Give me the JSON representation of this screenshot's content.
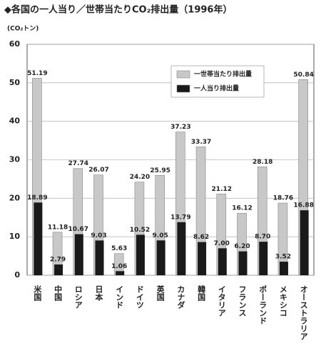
{
  "chart_data": {
    "type": "bar",
    "title": "◆各国の一人当り／世帯当たりCO₂排出量（1996年）",
    "y_label": "(CO₂トン)",
    "categories": [
      "米国",
      "中国",
      "ロシア",
      "日本",
      "インド",
      "ドイツ",
      "英国",
      "カナダ",
      "韓国",
      "イタリア",
      "フランス",
      "ポーランド",
      "メキシコ",
      "オーストラリア"
    ],
    "series": [
      {
        "name": "一世帯当たり排出量",
        "color": "#c8c8c8",
        "values": [
          51.19,
          11.18,
          27.74,
          26.07,
          5.63,
          24.2,
          25.95,
          37.23,
          33.37,
          21.12,
          16.12,
          28.18,
          18.76,
          50.84
        ],
        "value_labels": [
          "51.19",
          "11.18",
          "27.74",
          "26.07",
          "5.63",
          "24.20",
          "25.95",
          "37.23",
          "33.37",
          "21.12",
          "16.12",
          "28.18",
          "18.76",
          "50.84"
        ]
      },
      {
        "name": "一人当り排出量",
        "color": "#1a1a1a",
        "values": [
          18.89,
          2.79,
          10.67,
          9.03,
          1.06,
          10.52,
          9.05,
          13.79,
          8.62,
          7.0,
          6.2,
          8.7,
          3.52,
          16.88
        ],
        "value_labels": [
          "18.89",
          "2.79",
          "10.67",
          "9.03",
          "1.06",
          "10.52",
          "9.05",
          "13.79",
          "8.62",
          "7.00",
          "6.20",
          "8.70",
          "3.52",
          "16.88"
        ]
      }
    ],
    "ylim": [
      0,
      60
    ],
    "yticks": [
      0,
      10,
      20,
      30,
      40,
      50,
      60
    ],
    "grid": true,
    "legend": "top-right"
  }
}
